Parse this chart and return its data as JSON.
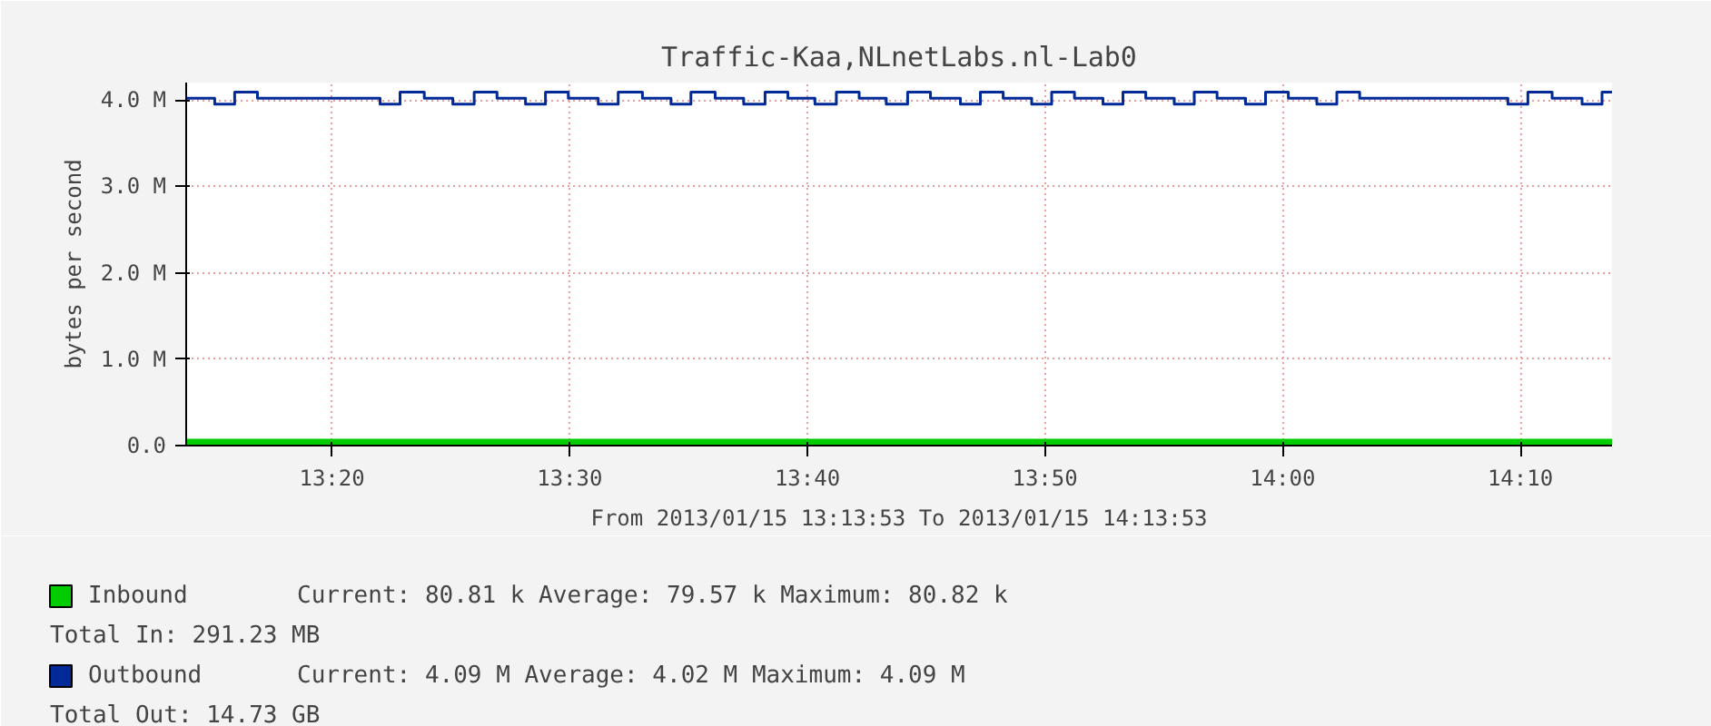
{
  "chart_data": {
    "type": "step",
    "title": "Traffic-Kaa,NLnetLabs.nl-Lab0",
    "xlabel": "From 2013/01/15 13:13:53 To 2013/01/15 14:13:53",
    "ylabel": "bytes per second",
    "xlim": [
      13.231,
      14.231
    ],
    "xticks": [
      {
        "value": 13.3333,
        "label": "13:20"
      },
      {
        "value": 13.5,
        "label": "13:30"
      },
      {
        "value": 13.6667,
        "label": "13:40"
      },
      {
        "value": 13.8333,
        "label": "13:50"
      },
      {
        "value": 14.0,
        "label": "14:00"
      },
      {
        "value": 14.1667,
        "label": "14:10"
      }
    ],
    "ylim": [
      0,
      4.2
    ],
    "yticks": [
      {
        "value": 0,
        "label": "0.0"
      },
      {
        "value": 1,
        "label": "1.0 M"
      },
      {
        "value": 2,
        "label": "2.0 M"
      },
      {
        "value": 3,
        "label": "3.0 M"
      },
      {
        "value": 4,
        "label": "4.0 M"
      }
    ],
    "grid": true,
    "legend": "bottom",
    "series": [
      {
        "name": "Inbound",
        "type": "area",
        "color": "#00cc00",
        "x": [
          13.231,
          14.231
        ],
        "values": [
          0.08,
          0.08
        ]
      },
      {
        "name": "Outbound",
        "type": "step",
        "color": "#002a97",
        "x": [
          13.231,
          13.251,
          13.265,
          13.281,
          13.367,
          13.381,
          13.398,
          13.418,
          13.433,
          13.449,
          13.469,
          13.483,
          13.499,
          13.52,
          13.534,
          13.551,
          13.571,
          13.585,
          13.602,
          13.622,
          13.637,
          13.653,
          13.672,
          13.687,
          13.703,
          13.722,
          13.737,
          13.753,
          13.774,
          13.788,
          13.804,
          13.824,
          13.838,
          13.854,
          13.874,
          13.888,
          13.904,
          13.924,
          13.938,
          13.954,
          13.974,
          13.988,
          14.004,
          14.024,
          14.038,
          14.054,
          14.158,
          14.172,
          14.189,
          14.21,
          14.224,
          14.231
        ],
        "values": [
          4.02,
          3.95,
          4.09,
          4.02,
          3.95,
          4.09,
          4.02,
          3.95,
          4.09,
          4.02,
          3.95,
          4.09,
          4.02,
          3.95,
          4.09,
          4.02,
          3.95,
          4.09,
          4.02,
          3.95,
          4.09,
          4.02,
          3.95,
          4.09,
          4.02,
          3.95,
          4.09,
          4.02,
          3.95,
          4.09,
          4.02,
          3.95,
          4.09,
          4.02,
          3.95,
          4.09,
          4.02,
          3.95,
          4.09,
          4.02,
          3.95,
          4.09,
          4.02,
          3.95,
          4.09,
          4.02,
          3.95,
          4.09,
          4.02,
          3.95,
          4.09,
          4.09
        ]
      }
    ],
    "annotations": [
      "Current:   80.81 k   Average:   79.57 k   Maximum:   80.82 k",
      "Total In:  291.23 MB",
      "Current:    4.09 M   Average:    4.02 M   Maximum:    4.09 M",
      "Total Out: 14.73 GB"
    ]
  }
}
